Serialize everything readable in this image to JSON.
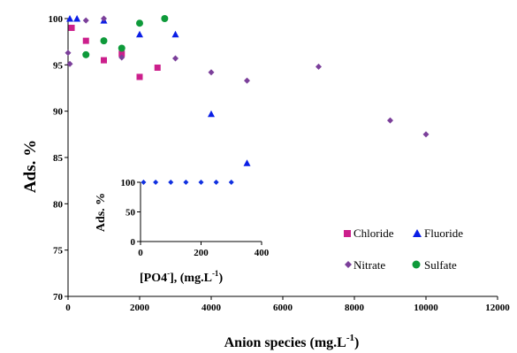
{
  "chart_data": [
    {
      "type": "scatter",
      "title": "",
      "xlabel": "Anion species (mg.L",
      "xlabel_sup": "-1",
      "xlabel_end": ")",
      "ylabel": "Ads. %",
      "xlim": [
        0,
        12000
      ],
      "ylim": [
        70,
        100
      ],
      "xticks": [
        0,
        2000,
        4000,
        6000,
        8000,
        10000,
        12000
      ],
      "yticks": [
        70,
        75,
        80,
        85,
        90,
        95,
        100
      ],
      "grid": false,
      "legend_position": "bottom-right",
      "series": [
        {
          "name": "Chloride",
          "marker": "square",
          "color": "#cc1f8c",
          "x": [
            100,
            500,
            1000,
            1500,
            2000,
            2500
          ],
          "y": [
            99.0,
            97.6,
            95.5,
            96.2,
            93.7,
            94.7
          ]
        },
        {
          "name": "Fluoride",
          "marker": "triangle",
          "color": "#0a1ee6",
          "x": [
            50,
            250,
            1000,
            2000,
            3000,
            4000,
            5000
          ],
          "y": [
            100,
            100,
            99.8,
            98.3,
            98.3,
            89.7,
            84.4
          ]
        },
        {
          "name": "Nitrate",
          "marker": "diamond",
          "color": "#7b3f9a",
          "x": [
            0,
            50,
            500,
            1000,
            1500,
            3000,
            4000,
            5000,
            7000,
            9000,
            10000
          ],
          "y": [
            96.3,
            95.1,
            99.8,
            100,
            95.8,
            95.7,
            94.2,
            93.3,
            94.8,
            89.0,
            87.5
          ]
        },
        {
          "name": "Sulfate",
          "marker": "circle",
          "color": "#0e9a3a",
          "x": [
            500,
            1000,
            1500,
            2000,
            2700
          ],
          "y": [
            96.1,
            97.6,
            96.8,
            99.5,
            100
          ]
        }
      ]
    },
    {
      "type": "scatter",
      "title": "",
      "xlabel": "[PO4",
      "xlabel_sup": "-",
      "xlabel_end": "], (mg.L",
      "xlabel_sup2": "-1",
      "xlabel_end2": ")",
      "ylabel": "Ads. %",
      "xlim": [
        0,
        400
      ],
      "ylim": [
        0,
        100
      ],
      "xticks": [
        0,
        200,
        400
      ],
      "yticks": [
        0,
        50,
        100
      ],
      "grid": false,
      "series": [
        {
          "name": "",
          "marker": "diamond",
          "color": "#1030e0",
          "x": [
            10,
            50,
            100,
            150,
            200,
            250,
            300
          ],
          "y": [
            100,
            100,
            100,
            100,
            100,
            100,
            100
          ]
        }
      ]
    }
  ]
}
